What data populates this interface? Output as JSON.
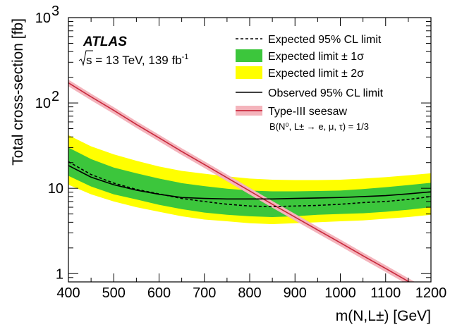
{
  "chart_data": {
    "type": "line",
    "xlabel": "m(N,L±) [GeV]",
    "ylabel": "Total cross-section [fb]",
    "xlim": [
      400,
      1200
    ],
    "ylim": [
      0.8,
      1000
    ],
    "yscale": "log",
    "x_ticks": [
      "400",
      "500",
      "600",
      "700",
      "800",
      "900",
      "1000",
      "1100",
      "1200"
    ],
    "y_ticks": [
      {
        "value": 1,
        "label": "1"
      },
      {
        "value": 10,
        "label": "10"
      },
      {
        "value": 100,
        "label": "10",
        "exp": "2"
      },
      {
        "value": 1000,
        "label": "10",
        "exp": "3"
      }
    ],
    "annotations": {
      "experiment": "ATLAS",
      "energy": "s = 13 TeV, 139 fb",
      "energy_sup": "-1",
      "br": "B(N⁰, L± → e, μ, τ) = 1/3"
    },
    "legend_position": "top-right",
    "legend": [
      {
        "key": "expected",
        "label": "Expected 95% CL limit"
      },
      {
        "key": "band1",
        "label": "Expected limit ± 1σ"
      },
      {
        "key": "band2",
        "label": "Expected limit ± 2σ"
      },
      {
        "key": "observed",
        "label": "Observed 95% CL limit"
      },
      {
        "key": "theory",
        "label": "Type-III seesaw"
      }
    ],
    "x": [
      400,
      450,
      500,
      550,
      600,
      650,
      700,
      750,
      800,
      850,
      900,
      950,
      1000,
      1050,
      1100,
      1150,
      1200
    ],
    "series": [
      {
        "key": "observed",
        "values": [
          18.5,
          13.5,
          11.0,
          9.5,
          8.5,
          7.8,
          7.6,
          7.5,
          7.5,
          7.5,
          7.6,
          7.7,
          7.8,
          8.0,
          8.2,
          8.6,
          9.1
        ]
      },
      {
        "key": "expected",
        "values": [
          20.5,
          14.5,
          11.5,
          9.7,
          8.6,
          7.6,
          7.0,
          6.5,
          6.2,
          6.1,
          6.2,
          6.3,
          6.5,
          6.8,
          7.0,
          7.4,
          8.0
        ]
      },
      {
        "key": "band1_low",
        "values": [
          14.0,
          10.5,
          8.5,
          7.4,
          6.4,
          5.7,
          5.2,
          4.9,
          4.7,
          4.6,
          4.7,
          4.9,
          5.0,
          5.1,
          5.3,
          5.6,
          6.0
        ]
      },
      {
        "key": "band1_high",
        "values": [
          30.0,
          22.0,
          17.5,
          15.0,
          13.0,
          11.5,
          10.6,
          9.9,
          9.4,
          9.2,
          9.2,
          9.3,
          9.4,
          9.8,
          10.3,
          10.9,
          11.6
        ]
      },
      {
        "key": "band2_low",
        "values": [
          11.0,
          8.5,
          7.0,
          6.0,
          5.3,
          4.7,
          4.3,
          4.1,
          3.9,
          3.8,
          3.9,
          4.0,
          4.1,
          4.2,
          4.4,
          4.6,
          4.9
        ]
      },
      {
        "key": "band2_high",
        "values": [
          42.0,
          31.0,
          25.0,
          21.0,
          18.0,
          16.0,
          14.8,
          13.8,
          13.0,
          12.6,
          12.5,
          12.5,
          12.6,
          13.0,
          13.5,
          14.2,
          15.0
        ]
      },
      {
        "key": "theory",
        "values": [
          172,
          118,
          82,
          56,
          39,
          27,
          19,
          13.3,
          9.3,
          6.5,
          4.6,
          3.25,
          2.3,
          1.62,
          1.15,
          0.81,
          0.58
        ]
      }
    ],
    "theory_uncertainty_frac": 0.09,
    "colors": {
      "band1": "#3cc63c",
      "band2": "#ffff00",
      "observed": "#000000",
      "expected": "#000000",
      "theory_line": "#c8283c",
      "theory_band": "#f4b4bc"
    }
  }
}
